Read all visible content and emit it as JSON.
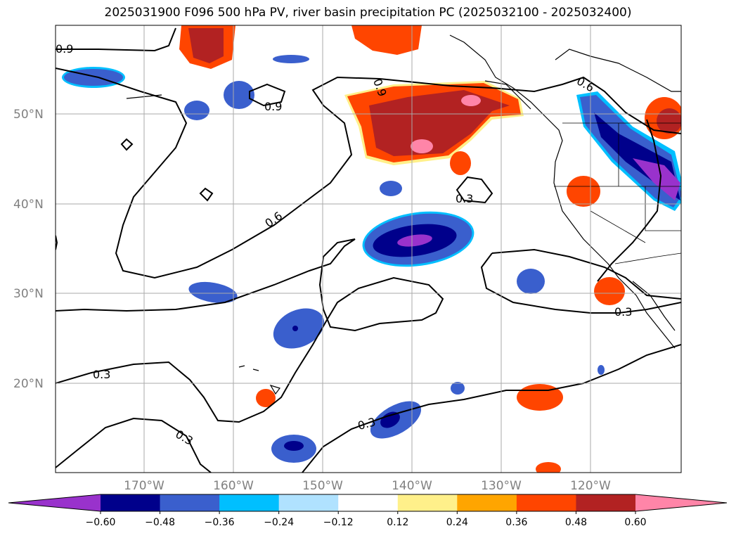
{
  "title": "2025031900 F096 500 hPa PV, river basin precipitation PC (2025032100 - 2025032400)",
  "latitude_labels": [
    "50°N",
    "40°N",
    "30°N",
    "20°N"
  ],
  "longitude_labels": [
    "170°W",
    "160°W",
    "150°W",
    "140°W",
    "130°W",
    "120°W"
  ],
  "contour_labels": [
    {
      "text": "0.9"
    },
    {
      "text": "0.9"
    },
    {
      "text": "0.9"
    },
    {
      "text": "0.6"
    },
    {
      "text": "0.6"
    },
    {
      "text": "0.3"
    },
    {
      "text": "0.3"
    },
    {
      "text": "0.3"
    },
    {
      "text": "0.3"
    },
    {
      "text": "0.3"
    }
  ],
  "colorbar": {
    "ticks": [
      "−0.60",
      "−0.48",
      "−0.36",
      "−0.24",
      "−0.12",
      "0.12",
      "0.24",
      "0.36",
      "0.48",
      "0.60"
    ],
    "colors": [
      "#9932cc",
      "#00008b",
      "#3a5fcd",
      "#00bfff",
      "#b0e2ff",
      "#ffffff",
      "#fff08a",
      "#ffa500",
      "#ff4500",
      "#b22222",
      "#ff85a8"
    ]
  }
}
